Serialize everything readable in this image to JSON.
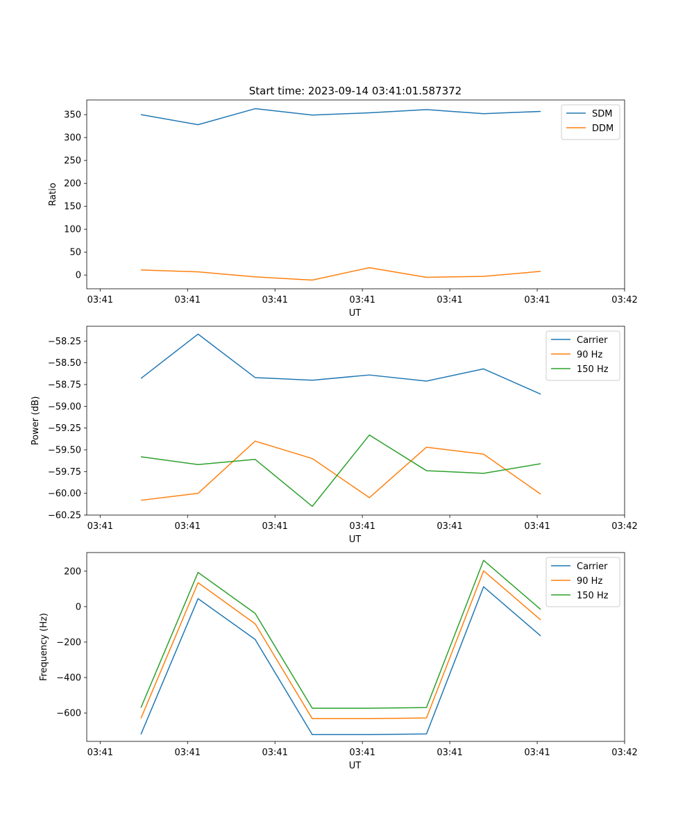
{
  "figure_title": "Start time: 2023-09-14 03:41:01.587372",
  "colors": {
    "blue": "#1f77b4",
    "orange": "#ff7f0e",
    "green": "#2ca02c"
  },
  "chart_data": [
    {
      "type": "line",
      "title": "Start time: 2023-09-14 03:41:01.587372",
      "xlabel": "UT",
      "ylabel": "Ratio",
      "xlim": [
        -0.23,
        9.0
      ],
      "ylim": [
        -30,
        382
      ],
      "xticks": [
        0,
        1.5,
        3,
        4.5,
        6,
        7.5,
        9
      ],
      "xtick_labels": [
        "03:41",
        "03:41",
        "03:41",
        "03:41",
        "03:41",
        "03:41",
        "03:42"
      ],
      "yticks": [
        0,
        50,
        100,
        150,
        200,
        250,
        300,
        350
      ],
      "ytick_labels": [
        "0",
        "50",
        "100",
        "150",
        "200",
        "250",
        "300",
        "350"
      ],
      "legend_position": "top-right",
      "x": [
        0.7,
        1.68,
        2.66,
        3.64,
        4.62,
        5.6,
        6.58,
        7.56
      ],
      "series": [
        {
          "name": "SDM",
          "color": "#1f77b4",
          "values": [
            350,
            328,
            363,
            349,
            354,
            361,
            352,
            357
          ]
        },
        {
          "name": "DDM",
          "color": "#ff7f0e",
          "values": [
            11,
            7,
            -4,
            -11,
            16,
            -5,
            -3,
            8
          ]
        }
      ]
    },
    {
      "type": "line",
      "xlabel": "UT",
      "ylabel": "Power (dB)",
      "xlim": [
        -0.23,
        9.0
      ],
      "ylim": [
        -60.25,
        -58.08
      ],
      "xticks": [
        0,
        1.5,
        3,
        4.5,
        6,
        7.5,
        9
      ],
      "xtick_labels": [
        "03:41",
        "03:41",
        "03:41",
        "03:41",
        "03:41",
        "03:41",
        "03:42"
      ],
      "yticks": [
        -60.25,
        -60.0,
        -59.75,
        -59.5,
        -59.25,
        -59.0,
        -58.75,
        -58.5,
        -58.25
      ],
      "ytick_labels": [
        "−60.25",
        "−60.00",
        "−59.75",
        "−59.50",
        "−59.25",
        "−59.00",
        "−58.75",
        "−58.50",
        "−58.25"
      ],
      "legend_position": "top-right",
      "x": [
        0.7,
        1.68,
        2.66,
        3.64,
        4.62,
        5.6,
        6.58,
        7.56
      ],
      "series": [
        {
          "name": "Carrier",
          "color": "#1f77b4",
          "values": [
            -58.68,
            -58.17,
            -58.67,
            -58.7,
            -58.64,
            -58.71,
            -58.57,
            -58.86
          ]
        },
        {
          "name": "90 Hz",
          "color": "#ff7f0e",
          "values": [
            -60.08,
            -60.0,
            -59.4,
            -59.6,
            -60.05,
            -59.47,
            -59.55,
            -60.01
          ]
        },
        {
          "name": "150 Hz",
          "color": "#2ca02c",
          "values": [
            -59.58,
            -59.67,
            -59.61,
            -60.15,
            -59.33,
            -59.74,
            -59.77,
            -59.66
          ]
        }
      ]
    },
    {
      "type": "line",
      "xlabel": "UT",
      "ylabel": "Frequency (Hz)",
      "xlim": [
        -0.23,
        9.0
      ],
      "ylim": [
        -760,
        305
      ],
      "xticks": [
        0,
        1.5,
        3,
        4.5,
        6,
        7.5,
        9
      ],
      "xtick_labels": [
        "03:41",
        "03:41",
        "03:41",
        "03:41",
        "03:41",
        "03:41",
        "03:42"
      ],
      "yticks": [
        -600,
        -400,
        -200,
        0,
        200
      ],
      "ytick_labels": [
        "−600",
        "−400",
        "−200",
        "0",
        "200"
      ],
      "legend_position": "top-right",
      "x": [
        0.7,
        1.68,
        2.66,
        3.64,
        4.62,
        5.6,
        6.58,
        7.56
      ],
      "series": [
        {
          "name": "Carrier",
          "color": "#1f77b4",
          "values": [
            -720,
            45,
            -185,
            -722,
            -722,
            -718,
            112,
            -165
          ]
        },
        {
          "name": "90 Hz",
          "color": "#ff7f0e",
          "values": [
            -630,
            135,
            -97,
            -632,
            -632,
            -628,
            202,
            -75
          ]
        },
        {
          "name": "150 Hz",
          "color": "#2ca02c",
          "values": [
            -570,
            193,
            -38,
            -573,
            -573,
            -569,
            261,
            -16
          ]
        }
      ]
    }
  ]
}
